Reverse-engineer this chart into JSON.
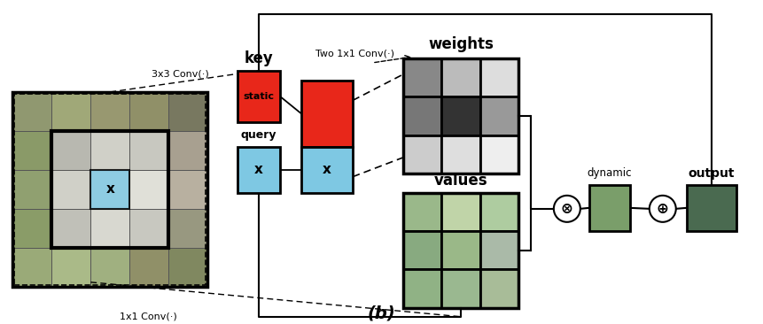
{
  "bg_color": "#ffffff",
  "title_label": "(b)",
  "key_label": "key",
  "query_label": "query",
  "weights_label": "weights",
  "values_label": "values",
  "dynamic_label": "dynamic",
  "output_label": "output",
  "static_label": "static",
  "x_label": "x",
  "conv3x3_label": "3x3 Conv(·)",
  "conv1x1_label": "1x1 Conv(·)",
  "two1x1_label": "Two 1x1 Conv(·)",
  "key_color": "#e8271a",
  "query_color": "#7ec8e3",
  "weights_grid_colors": [
    [
      "#888888",
      "#bbbbbb",
      "#dddddd"
    ],
    [
      "#777777",
      "#333333",
      "#999999"
    ],
    [
      "#cccccc",
      "#dedede",
      "#eeeeee"
    ]
  ],
  "values_grid_colors": [
    [
      "#9ab88a",
      "#c0d4a8",
      "#aecca0"
    ],
    [
      "#88aa80",
      "#9ab888",
      "#aabaa8"
    ],
    [
      "#90b285",
      "#9ab890",
      "#a8bc98"
    ]
  ],
  "img_colors": [
    [
      "#7a9060",
      "#8a9e6a",
      "#b0b090",
      "#a8a880",
      "#909878"
    ],
    [
      "#8a9e68",
      "#c8c8b0",
      "#d8d8c8",
      "#c8c8b8",
      "#b0a888"
    ],
    [
      "#90a060",
      "#d0d0b8",
      "#f0f0e0",
      "#e8e8d8",
      "#c8c0a0"
    ],
    [
      "#8aa068",
      "#b8b8a0",
      "#d8d8c0",
      "#d0d0b8",
      "#b0a890"
    ],
    [
      "#7a9058",
      "#8a9e68",
      "#a0b278",
      "#98a870",
      "#8a9a68"
    ]
  ],
  "dynamic_color": "#7a9e6a",
  "output_color": "#4a6a50"
}
